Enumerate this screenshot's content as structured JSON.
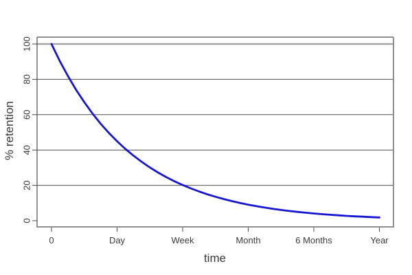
{
  "style": {
    "background": "#ffffff",
    "curve_color": "#1717d2",
    "gridline_color": "#4f4f4f",
    "emphasis_gridline_color": "#a0a0a0",
    "frame_dark_color": "#4a4a4a",
    "frame_gray_color": "#8f8f8f",
    "text_color": "#3a3a3a"
  },
  "chart_data": {
    "type": "line",
    "title": "",
    "xlabel": "time",
    "ylabel": "% retention",
    "x_tick_labels": [
      "0",
      "Day",
      "Week",
      "Month",
      "6 Months",
      "Year"
    ],
    "x_tick_positions": [
      0,
      1,
      2,
      3,
      4,
      5
    ],
    "y_ticks": [
      0,
      20,
      40,
      60,
      80,
      100
    ],
    "xlim": [
      0,
      5
    ],
    "ylim": [
      0,
      100
    ],
    "grid": "horizontal gridlines at y = 20,40,60,80 plus thicker gray line at y = 100; no vertical gridlines; no legend",
    "gridlines_y": [
      20,
      40,
      60,
      80
    ],
    "emphasis_gridline_y": 100,
    "description": "Exponential forgetting curve: retention starts at 100% and decays to about 2% at one year",
    "key_points": {
      "0": 100,
      "Day": 45,
      "Week": 20,
      "Month": 9,
      "6 Months": 4,
      "Year": 2
    },
    "series": [
      {
        "name": "retention",
        "color": "#1717d2",
        "x": [
          0,
          0.125,
          0.25,
          0.375,
          0.5,
          0.625,
          0.75,
          0.875,
          1,
          1.125,
          1.25,
          1.375,
          1.5,
          1.625,
          1.75,
          1.875,
          2,
          2.125,
          2.25,
          2.375,
          2.5,
          2.625,
          2.75,
          2.875,
          3,
          3.125,
          3.25,
          3.375,
          3.5,
          3.625,
          3.75,
          3.875,
          4,
          4.125,
          4.25,
          4.375,
          4.5,
          4.625,
          4.75,
          4.875,
          5
        ],
        "y": [
          100,
          90.48,
          81.87,
          74.08,
          67.03,
          60.65,
          54.88,
          49.66,
          44.93,
          40.66,
          36.79,
          33.29,
          30.12,
          27.25,
          24.66,
          22.31,
          20.19,
          18.27,
          16.53,
          14.96,
          13.53,
          12.25,
          11.08,
          10.03,
          9.07,
          8.21,
          7.43,
          6.72,
          6.08,
          5.5,
          4.98,
          4.51,
          4.08,
          3.69,
          3.34,
          3.02,
          2.73,
          2.47,
          2.24,
          2.02,
          1.83
        ]
      }
    ]
  }
}
